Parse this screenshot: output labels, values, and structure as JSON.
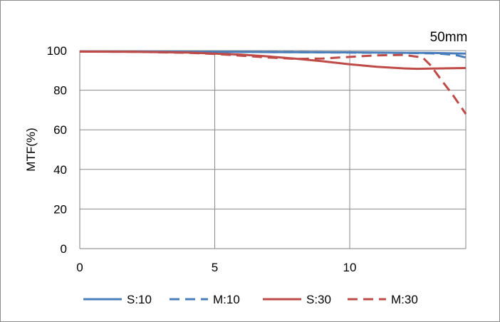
{
  "chart_data": {
    "type": "line",
    "annotation": "50mm",
    "xlabel": "",
    "ylabel": "MTF(%)",
    "xlim": [
      0,
      14.3
    ],
    "ylim": [
      0,
      100
    ],
    "xticks": [
      0,
      5,
      10
    ],
    "yticks": [
      0,
      20,
      40,
      60,
      80,
      100
    ],
    "grid": true,
    "legend_position": "bottom",
    "series": [
      {
        "name": "S:10",
        "color": "#4a7ebb",
        "dash": "solid",
        "x": [
          0,
          2,
          4,
          6,
          8,
          10,
          12,
          13,
          14.3
        ],
        "y": [
          99.5,
          99.5,
          99.4,
          99.3,
          99.2,
          99.1,
          98.9,
          98.8,
          98.5
        ]
      },
      {
        "name": "M:10",
        "color": "#4a7ebb",
        "dash": "dashed",
        "x": [
          0,
          2,
          4,
          6,
          8,
          10,
          11,
          12,
          13,
          13.5,
          14,
          14.3
        ],
        "y": [
          99.5,
          99.5,
          99.4,
          99.3,
          99.2,
          99.0,
          98.9,
          98.8,
          98.6,
          98.3,
          97.5,
          96.5
        ]
      },
      {
        "name": "S:30",
        "color": "#be4b48",
        "dash": "solid",
        "x": [
          0,
          2,
          4,
          5,
          6,
          7,
          8,
          9,
          10,
          11,
          12,
          12.5,
          13,
          14.3
        ],
        "y": [
          99.5,
          99.4,
          99.0,
          98.5,
          97.9,
          97.0,
          95.9,
          94.6,
          93.1,
          91.8,
          91.0,
          90.8,
          90.9,
          91.2
        ]
      },
      {
        "name": "M:30",
        "color": "#be4b48",
        "dash": "dashed",
        "x": [
          0,
          2,
          4,
          5,
          6,
          7,
          8,
          9,
          10,
          11,
          12,
          12.7,
          13.0,
          13.4,
          13.8,
          14.1,
          14.3
        ],
        "y": [
          99.5,
          99.4,
          98.9,
          98.3,
          97.4,
          96.5,
          95.8,
          96.0,
          96.8,
          97.6,
          97.8,
          96.5,
          92.5,
          85.0,
          78.0,
          72.0,
          68.0
        ]
      }
    ]
  }
}
